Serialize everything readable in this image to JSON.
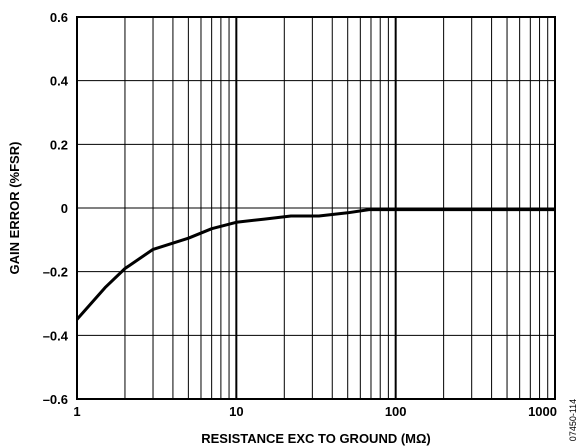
{
  "chart_data": {
    "type": "line",
    "xlabel": "RESISTANCE EXC TO GROUND (MΩ)",
    "ylabel": "GAIN ERROR (%FSR)",
    "x_scale": "log",
    "xlim": [
      1,
      1000
    ],
    "ylim": [
      -0.6,
      0.6
    ],
    "x_ticks": [
      {
        "value": 1,
        "label": "1"
      },
      {
        "value": 10,
        "label": "10"
      },
      {
        "value": 100,
        "label": "100"
      },
      {
        "value": 1000,
        "label": "1000"
      }
    ],
    "y_ticks": [
      {
        "value": 0.6,
        "label": "0.6"
      },
      {
        "value": 0.4,
        "label": "0.4"
      },
      {
        "value": 0.2,
        "label": "0.2"
      },
      {
        "value": 0,
        "label": "0"
      },
      {
        "value": -0.2,
        "label": "–0.2"
      },
      {
        "value": -0.4,
        "label": "–0.4"
      },
      {
        "value": -0.6,
        "label": "–0.6"
      }
    ],
    "grid": true,
    "series": [
      {
        "x": [
          1,
          1.5,
          2,
          3,
          5,
          7,
          10,
          15,
          22,
          33,
          50,
          68,
          100,
          200,
          500,
          1000
        ],
        "y": [
          -0.35,
          -0.25,
          -0.19,
          -0.13,
          -0.095,
          -0.065,
          -0.045,
          -0.035,
          -0.025,
          -0.025,
          -0.015,
          -0.005,
          -0.005,
          -0.005,
          -0.005,
          -0.005
        ]
      }
    ],
    "figure_id": "07450-114"
  }
}
